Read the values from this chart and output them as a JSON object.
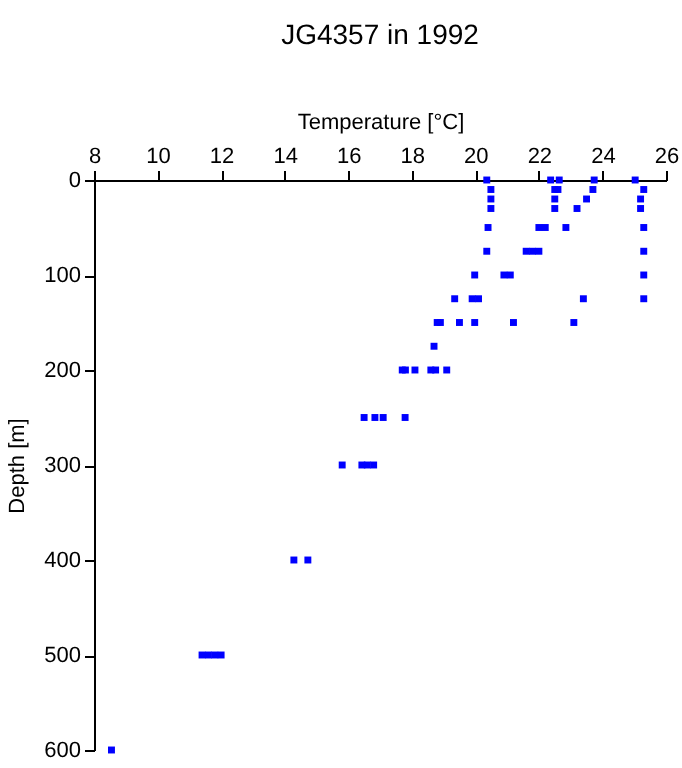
{
  "chart_data": {
    "type": "scatter",
    "title": "JG4357 in 1992",
    "xlabel": "Temperature [°C]",
    "ylabel": "Depth [m]",
    "xlim": [
      8,
      26
    ],
    "xticks": [
      8,
      10,
      12,
      14,
      16,
      18,
      20,
      22,
      24,
      26
    ],
    "ylim": [
      600,
      0
    ],
    "yticks": [
      0,
      100,
      200,
      300,
      400,
      500,
      600
    ],
    "grid": false,
    "legend": false,
    "marker": "square",
    "series": [
      {
        "color": "#0000ff",
        "x": [
          20.36,
          22.37,
          22.64,
          23.74,
          25.03,
          20.49,
          22.5,
          22.6,
          23.7,
          25.3,
          20.49,
          22.5,
          23.5,
          25.2,
          20.49,
          22.5,
          23.2,
          25.2,
          20.4,
          22.0,
          22.2,
          22.85,
          25.3,
          20.36,
          21.6,
          21.8,
          22.0,
          25.3,
          19.98,
          20.9,
          21.1,
          25.3,
          19.35,
          19.9,
          20.1,
          23.4,
          25.3,
          18.8,
          18.9,
          19.5,
          19.98,
          21.2,
          23.1,
          18.7,
          17.7,
          17.8,
          18.1,
          18.6,
          18.75,
          19.1,
          16.5,
          16.84,
          17.1,
          17.79,
          15.81,
          16.43,
          16.6,
          16.8,
          14.29,
          14.73,
          11.4,
          11.6,
          11.8,
          12.0,
          8.55
        ],
        "values": [
          0,
          0,
          0,
          0,
          0,
          10,
          10,
          10,
          10,
          10,
          20,
          20,
          20,
          20,
          30,
          30,
          30,
          30,
          50,
          50,
          50,
          50,
          50,
          75,
          75,
          75,
          75,
          75,
          100,
          100,
          100,
          100,
          125,
          125,
          125,
          125,
          125,
          150,
          150,
          150,
          150,
          150,
          150,
          175,
          200,
          200,
          200,
          200,
          200,
          200,
          250,
          250,
          250,
          250,
          300,
          300,
          300,
          300,
          400,
          400,
          500,
          500,
          500,
          500,
          600
        ]
      }
    ]
  }
}
